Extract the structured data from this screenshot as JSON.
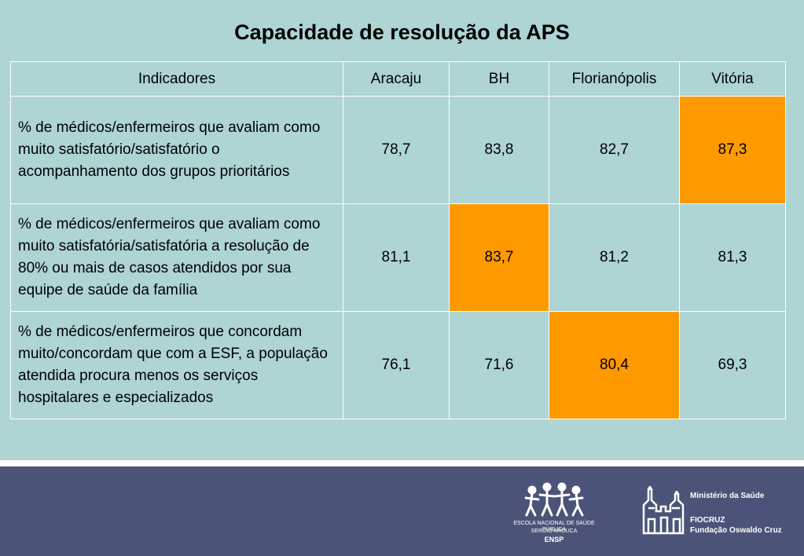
{
  "title": "Capacidade de resolução da APS",
  "table": {
    "headers": [
      "Indicadores",
      "Aracaju",
      "BH",
      "Florianópolis",
      "Vitória"
    ],
    "rows": [
      {
        "indicator": "% de médicos/enfermeiros que avaliam como muito satisfatório/satisfatório o acompanhamento dos grupos prioritários",
        "values": [
          "78,7",
          "83,8",
          "82,7",
          "87,3"
        ],
        "highlight": "Vitória"
      },
      {
        "indicator": "% de médicos/enfermeiros que avaliam como muito satisfatória/satisfatória a resolução de 80% ou mais de casos atendidos por sua equipe de saúde da família",
        "values": [
          "81,1",
          "83,7",
          "81,2",
          "81,3"
        ],
        "highlight": "BH"
      },
      {
        "indicator": "% de médicos/enfermeiros que concordam muito/concordam que com a ESF, a população atendida procura menos os serviços hospitalares e especializados",
        "values": [
          "76,1",
          "71,6",
          "80,4",
          "69,3"
        ],
        "highlight": "Florianópolis"
      }
    ]
  },
  "colors": {
    "background": "#aed4d4",
    "highlight": "#ff9900",
    "footer": "#4b5478"
  },
  "footer": {
    "ensp_name": "ESCOLA NACIONAL DE SAÚDE PÚBLICA",
    "ensp_subname": "SERGIO AROUCA",
    "ensp_abbr": "ENSP",
    "ministry": "Ministério da Saúde",
    "fiocruz": "FIOCRUZ",
    "foundation": "Fundação Oswaldo Cruz",
    "icons": [
      "ensp-logo-icon",
      "fiocruz-castle-icon"
    ]
  }
}
